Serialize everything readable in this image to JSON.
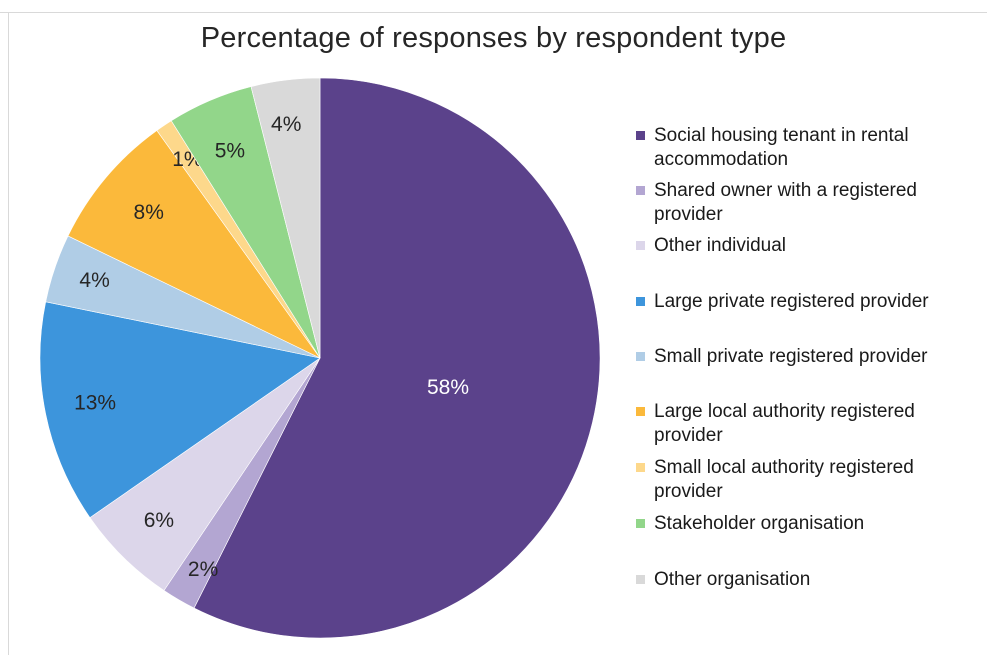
{
  "chart_data": {
    "type": "pie",
    "title": "Percentage of responses by respondent type",
    "slices": [
      {
        "name": "Social housing tenant in rental accommodation",
        "value": 58,
        "label": "58%",
        "color": "#5b428b"
      },
      {
        "name": "Shared owner with a registered provider",
        "value": 2,
        "label": "2%",
        "color": "#b3a6d2"
      },
      {
        "name": "Other individual",
        "value": 6,
        "label": "6%",
        "color": "#dcd6ea"
      },
      {
        "name": "Large private registered provider",
        "value": 13,
        "label": "13%",
        "color": "#3d95dc"
      },
      {
        "name": "Small private registered provider",
        "value": 4,
        "label": "4%",
        "color": "#b0cde6"
      },
      {
        "name": "Large local authority registered provider",
        "value": 8,
        "label": "8%",
        "color": "#fbb93b"
      },
      {
        "name": "Small local authority registered provider",
        "value": 1,
        "label": "1%",
        "color": "#fdd88b"
      },
      {
        "name": "Stakeholder organisation",
        "value": 5,
        "label": "5%",
        "color": "#92d68a"
      },
      {
        "name": "Other organisation",
        "value": 4,
        "label": "4%",
        "color": "#d9d9d9"
      }
    ],
    "legend_position": "right",
    "start": "top, clockwise"
  }
}
